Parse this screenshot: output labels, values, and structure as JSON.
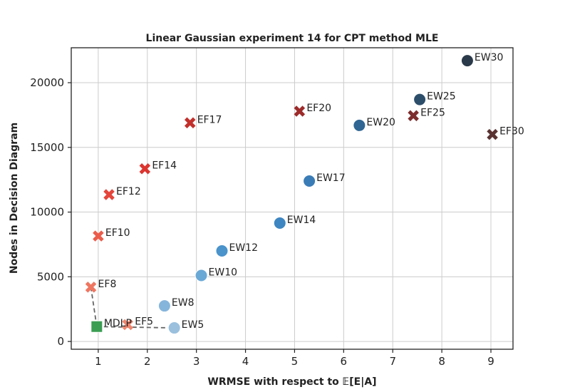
{
  "chart_data": {
    "type": "scatter",
    "title": "Linear Gaussian experiment 14 for CPT method MLE",
    "xlabel": "WRMSE with respect to 𝔼[E|A]",
    "ylabel": "Nodes in Decision Diagram",
    "xlim": [
      0.45,
      9.45
    ],
    "ylim": [
      -600,
      22700
    ],
    "xticks": [
      1,
      2,
      3,
      4,
      5,
      6,
      7,
      8,
      9
    ],
    "yticks": [
      0,
      5000,
      10000,
      15000,
      20000
    ],
    "grid": true,
    "series": [
      {
        "marker": "circle",
        "points": [
          {
            "label": "EW5",
            "x": 2.55,
            "y": 1050,
            "color": "#9ac0de"
          },
          {
            "label": "EW8",
            "x": 2.35,
            "y": 2750,
            "color": "#86b5db"
          },
          {
            "label": "EW10",
            "x": 3.1,
            "y": 5100,
            "color": "#6aa8d6"
          },
          {
            "label": "EW12",
            "x": 3.52,
            "y": 7000,
            "color": "#4a93cb"
          },
          {
            "label": "EW14",
            "x": 4.7,
            "y": 9150,
            "color": "#3d86c2"
          },
          {
            "label": "EW17",
            "x": 5.3,
            "y": 12400,
            "color": "#3a7cb6"
          },
          {
            "label": "EW20",
            "x": 6.32,
            "y": 16700,
            "color": "#2f6693"
          },
          {
            "label": "EW25",
            "x": 7.55,
            "y": 18700,
            "color": "#2d4e6a"
          },
          {
            "label": "EW30",
            "x": 8.52,
            "y": 21700,
            "color": "#2b3a4a"
          }
        ]
      },
      {
        "marker": "x",
        "points": [
          {
            "label": "EF5",
            "x": 1.6,
            "y": 1300,
            "color": "#f0856d"
          },
          {
            "label": "EF8",
            "x": 0.85,
            "y": 4200,
            "color": "#ee7661"
          },
          {
            "label": "EF10",
            "x": 1.0,
            "y": 8150,
            "color": "#eb5c4b"
          },
          {
            "label": "EF12",
            "x": 1.22,
            "y": 11350,
            "color": "#e4463c"
          },
          {
            "label": "EF14",
            "x": 1.95,
            "y": 13350,
            "color": "#db3530"
          },
          {
            "label": "EF17",
            "x": 2.87,
            "y": 16900,
            "color": "#c2302c"
          },
          {
            "label": "EF20",
            "x": 5.1,
            "y": 17800,
            "color": "#9c2b2a"
          },
          {
            "label": "EF25",
            "x": 7.42,
            "y": 17450,
            "color": "#7d2d2d"
          },
          {
            "label": "EF30",
            "x": 9.03,
            "y": 16000,
            "color": "#5a3232"
          }
        ]
      },
      {
        "marker": "square",
        "points": [
          {
            "label": "MDLP",
            "x": 0.97,
            "y": 1150,
            "color": "#3a9d52"
          }
        ]
      }
    ],
    "dashed_lines": [
      {
        "from": "MDLP",
        "to": "EF8"
      },
      {
        "from": "MDLP",
        "to": "EW5"
      }
    ]
  }
}
